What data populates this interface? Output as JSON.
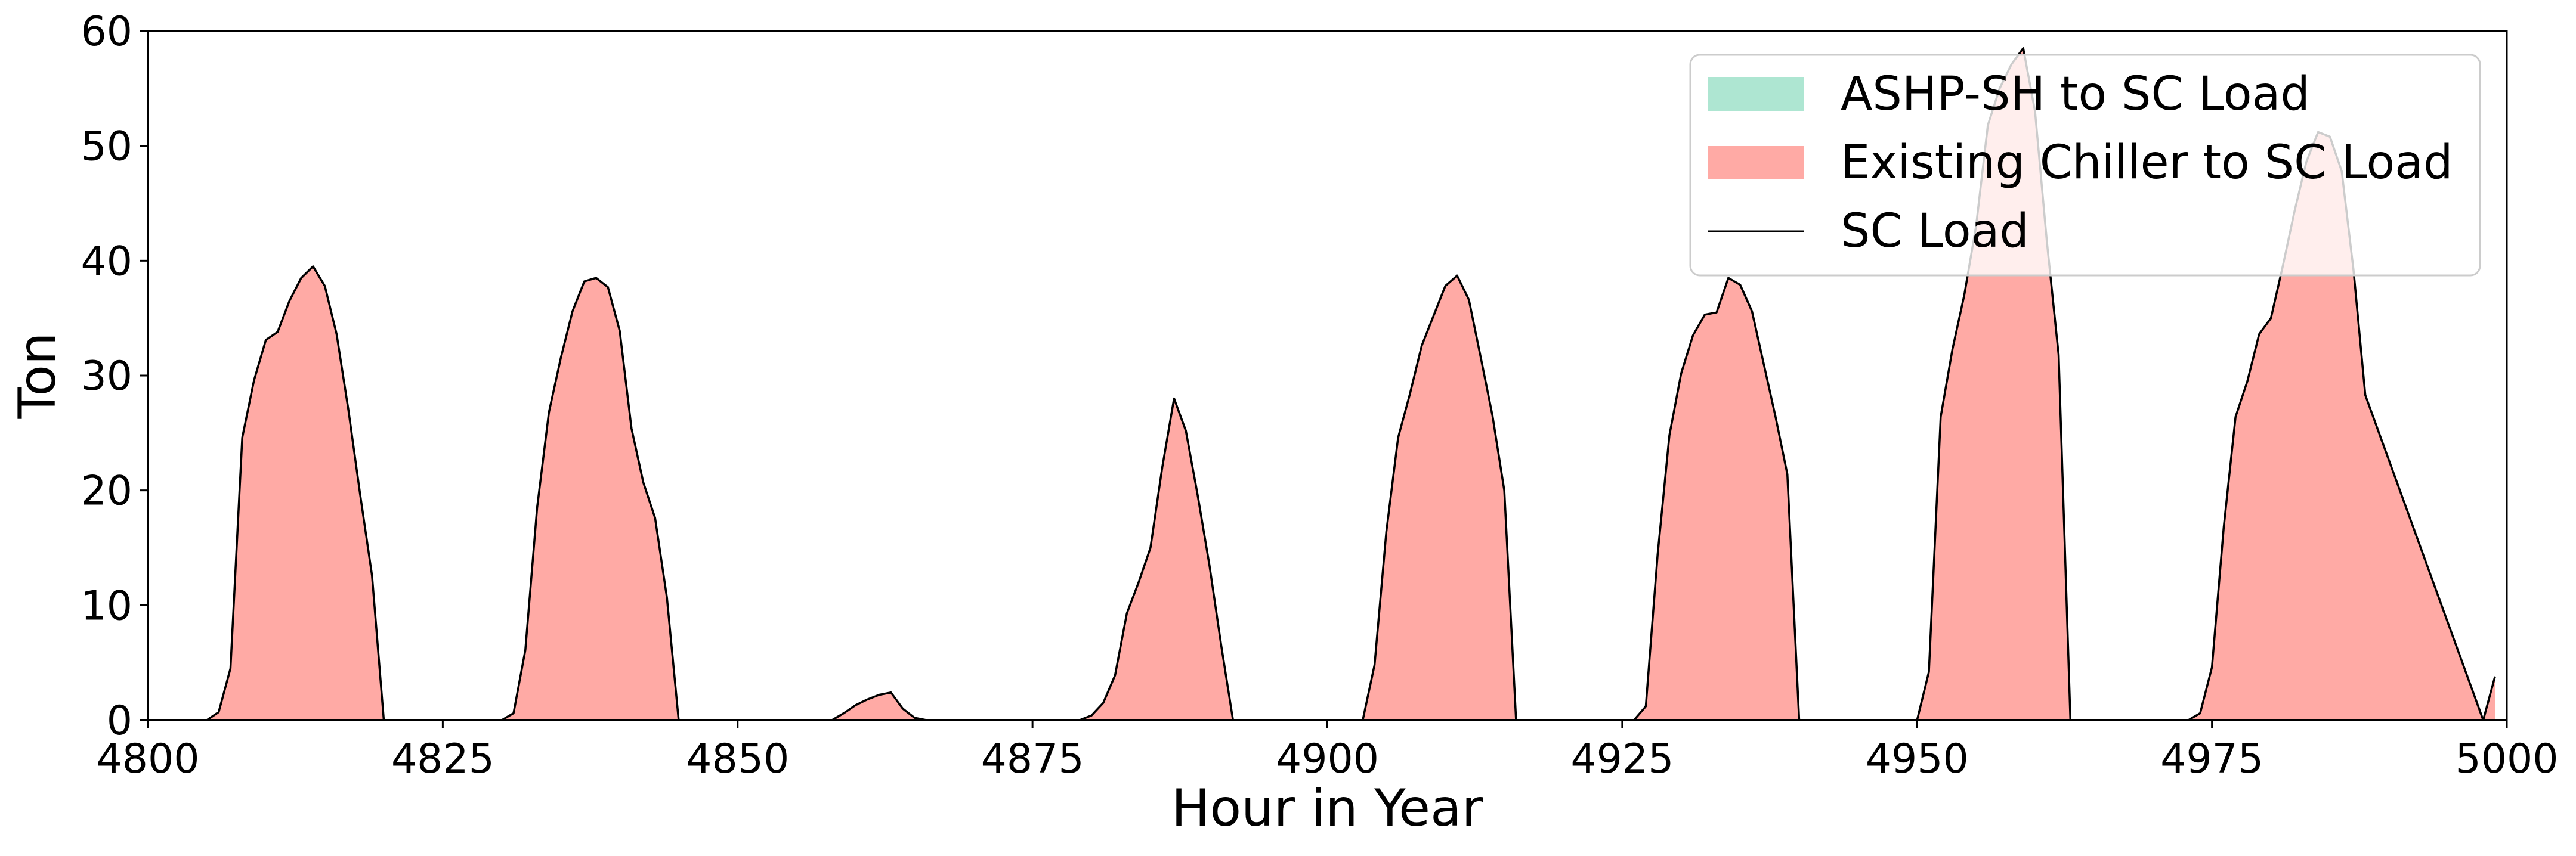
{
  "chart_data": {
    "type": "area",
    "title": "",
    "xlabel": "Hour in Year",
    "ylabel": "Ton",
    "xlim": [
      4800,
      5000
    ],
    "ylim": [
      0,
      60
    ],
    "xticks": [
      4800,
      4825,
      4850,
      4875,
      4900,
      4925,
      4950,
      4975,
      5000
    ],
    "yticks": [
      0,
      10,
      20,
      30,
      40,
      50,
      60
    ],
    "grid": false,
    "legend_position": "top-right",
    "series": [
      {
        "name": "ASHP-SH to SC Load",
        "kind": "area",
        "color": "#aee6d2",
        "x": [
          4800,
          5000
        ],
        "values": [
          0,
          0
        ]
      },
      {
        "name": "Existing Chiller to SC Load",
        "kind": "area",
        "color": "#ffaaa5"
      },
      {
        "name": "SC Load",
        "kind": "line",
        "color": "#000000"
      }
    ],
    "x": [
      4800,
      4805,
      4806,
      4807,
      4808,
      4809,
      4810,
      4811,
      4812,
      4813,
      4814,
      4815,
      4816,
      4817,
      4818,
      4819,
      4820,
      4821,
      4830,
      4831,
      4832,
      4833,
      4834,
      4835,
      4836,
      4837,
      4838,
      4839,
      4840,
      4841,
      4842,
      4843,
      4844,
      4845,
      4846,
      4858,
      4859,
      4860,
      4861,
      4862,
      4863,
      4864,
      4865,
      4866,
      4879,
      4880,
      4881,
      4882,
      4883,
      4884,
      4885,
      4886,
      4887,
      4888,
      4889,
      4890,
      4891,
      4892,
      4903,
      4904,
      4905,
      4906,
      4907,
      4908,
      4909,
      4910,
      4911,
      4912,
      4913,
      4914,
      4915,
      4916,
      4926,
      4927,
      4928,
      4929,
      4930,
      4931,
      4932,
      4933,
      4934,
      4935,
      4936,
      4937,
      4938,
      4939,
      4940,
      4950,
      4951,
      4952,
      4953,
      4954,
      4955,
      4956,
      4957,
      4958,
      4959,
      4960,
      4961,
      4962,
      4963,
      4964,
      4973,
      4974,
      4975,
      4976,
      4977,
      4978,
      4979,
      4980,
      4981,
      4982,
      4983,
      4984,
      4985,
      4986,
      4987,
      4988,
      4998,
      4999
    ],
    "sc_load": [
      0,
      0,
      0.7,
      4.5,
      24.6,
      29.6,
      33.1,
      33.8,
      36.5,
      38.5,
      39.5,
      37.8,
      33.6,
      27.0,
      19.6,
      12.6,
      0,
      0,
      0,
      0.6,
      6.1,
      18.5,
      26.8,
      31.5,
      35.6,
      38.2,
      38.5,
      37.7,
      33.9,
      25.4,
      20.7,
      17.6,
      10.7,
      0,
      0,
      0,
      0.6,
      1.3,
      1.8,
      2.2,
      2.4,
      1.0,
      0.2,
      0,
      0,
      0.4,
      1.5,
      3.9,
      9.3,
      12.0,
      15.0,
      22.0,
      28.0,
      25.2,
      19.6,
      13.5,
      6.5,
      0,
      0,
      4.8,
      16.4,
      24.6,
      28.4,
      32.6,
      35.2,
      37.8,
      38.7,
      36.6,
      31.6,
      26.5,
      20.0,
      0,
      0,
      1.2,
      14.4,
      24.8,
      30.2,
      33.5,
      35.3,
      35.5,
      38.5,
      37.9,
      35.6,
      31.0,
      26.4,
      21.4,
      0,
      0,
      4.2,
      26.4,
      32.3,
      37.0,
      43.0,
      51.8,
      55.0,
      57.1,
      58.5,
      53.0,
      41.7,
      31.8,
      0,
      0,
      0,
      0.6,
      4.6,
      16.8,
      26.4,
      29.5,
      33.6,
      35.0,
      39.5,
      44.3,
      48.6,
      51.2,
      50.8,
      47.8,
      39.2,
      28.3,
      0,
      3.8
    ]
  }
}
